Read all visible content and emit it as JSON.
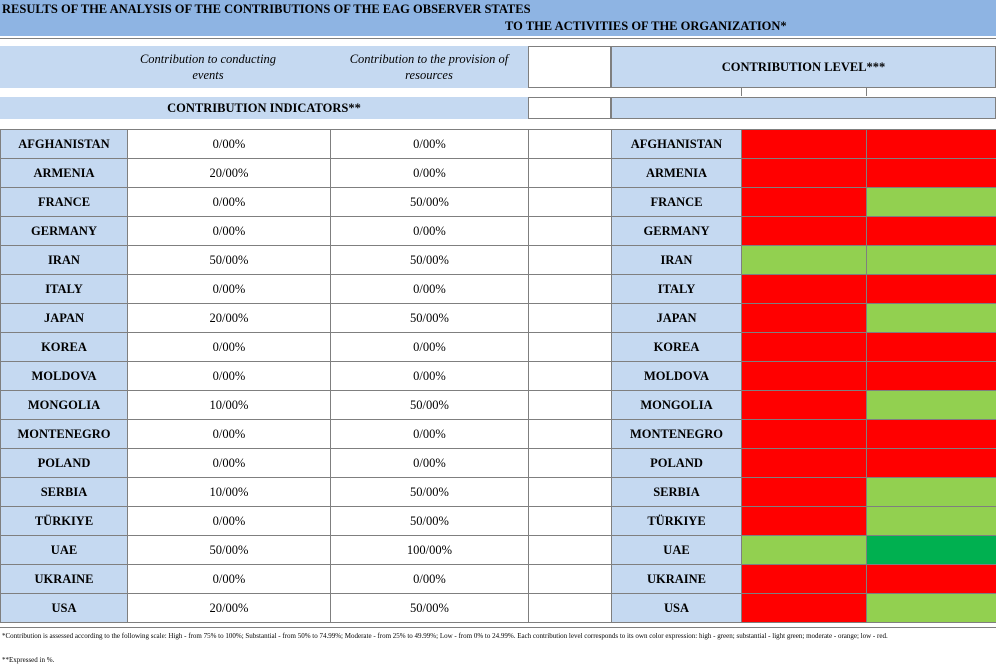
{
  "title": {
    "line1": "RESULTS OF THE ANALYSIS OF THE CONTRIBUTIONS OF THE EAG OBSERVER STATES",
    "line2": "TO THE ACTIVITIES OF THE ORGANIZATION*"
  },
  "headers": {
    "col_events": "Contribution to conducting events",
    "col_resources": "Contribution to the provision of resources",
    "contribution_level": "CONTRIBUTION LEVEL***",
    "indicators": "CONTRIBUTION INDICATORS**"
  },
  "colors": {
    "red": "#ff0000",
    "light_green": "#92d050",
    "green": "#00b050",
    "header_blue": "#c5d9f1",
    "title_blue": "#8eb4e3"
  },
  "rows": [
    {
      "country": "AFGHANISTAN",
      "events": "0/00%",
      "resources": "0/00%",
      "level": [
        "red",
        "red"
      ]
    },
    {
      "country": "ARMENIA",
      "events": "20/00%",
      "resources": "0/00%",
      "level": [
        "red",
        "red"
      ]
    },
    {
      "country": "FRANCE",
      "events": "0/00%",
      "resources": "50/00%",
      "level": [
        "red",
        "light_green"
      ]
    },
    {
      "country": "GERMANY",
      "events": "0/00%",
      "resources": "0/00%",
      "level": [
        "red",
        "red"
      ]
    },
    {
      "country": "IRAN",
      "events": "50/00%",
      "resources": "50/00%",
      "level": [
        "light_green",
        "light_green"
      ]
    },
    {
      "country": "ITALY",
      "events": "0/00%",
      "resources": "0/00%",
      "level": [
        "red",
        "red"
      ]
    },
    {
      "country": "JAPAN",
      "events": "20/00%",
      "resources": "50/00%",
      "level": [
        "red",
        "light_green"
      ]
    },
    {
      "country": "KOREA",
      "events": "0/00%",
      "resources": "0/00%",
      "level": [
        "red",
        "red"
      ]
    },
    {
      "country": "MOLDOVA",
      "events": "0/00%",
      "resources": "0/00%",
      "level": [
        "red",
        "red"
      ]
    },
    {
      "country": "MONGOLIA",
      "events": "10/00%",
      "resources": "50/00%",
      "level": [
        "red",
        "light_green"
      ]
    },
    {
      "country": "MONTENEGRO",
      "events": "0/00%",
      "resources": "0/00%",
      "level": [
        "red",
        "red"
      ]
    },
    {
      "country": "POLAND",
      "events": "0/00%",
      "resources": "0/00%",
      "level": [
        "red",
        "red"
      ]
    },
    {
      "country": "SERBIA",
      "events": "10/00%",
      "resources": "50/00%",
      "level": [
        "red",
        "light_green"
      ]
    },
    {
      "country": "TÜRKIYE",
      "events": "0/00%",
      "resources": "50/00%",
      "level": [
        "red",
        "light_green"
      ]
    },
    {
      "country": "UAE",
      "events": "50/00%",
      "resources": "100/00%",
      "level": [
        "light_green",
        "green"
      ]
    },
    {
      "country": "UKRAINE",
      "events": "0/00%",
      "resources": "0/00%",
      "level": [
        "red",
        "red"
      ]
    },
    {
      "country": "USA",
      "events": "20/00%",
      "resources": "50/00%",
      "level": [
        "red",
        "light_green"
      ]
    }
  ],
  "footnotes": {
    "note1": "*Contribution is assessed according to the following scale: High - from 75% to 100%; Substantial - from 50% to 74.99%; Moderate - from 25% to 49.99%; Low - from 0% to 24.99%. Each contribution level corresponds to its own color expression: high - green; substantial - light green; moderate - orange; low - red.",
    "note2": "**Expressed in %."
  }
}
